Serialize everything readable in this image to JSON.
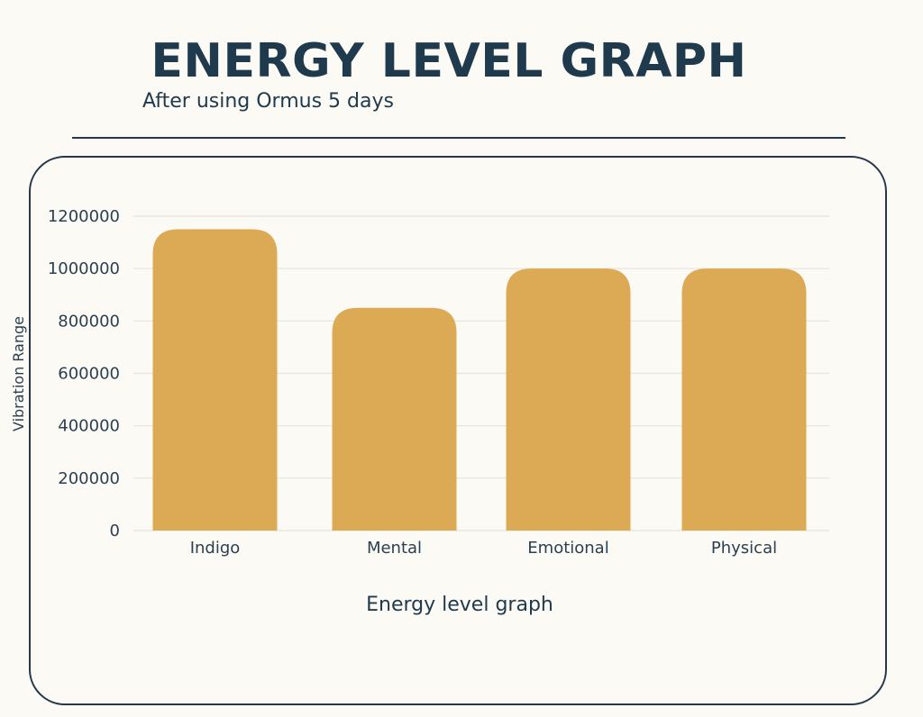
{
  "header": {
    "title": "ENERGY LEVEL GRAPH",
    "subtitle": "After using Ormus 5 days"
  },
  "colors": {
    "title": "#1f3a4d",
    "text": "#2b3f50",
    "bar": "#dca955",
    "grid": "#e6e4dc",
    "frame": "#26384a",
    "background": "#fbfaf4"
  },
  "chart_data": {
    "type": "bar",
    "categories": [
      "Indigo",
      "Mental",
      "Emotional",
      "Physical"
    ],
    "values": [
      1150000,
      850000,
      1000000,
      1000000
    ],
    "xlabel": "Energy level graph",
    "ylabel": "Vibration Range",
    "ylim": [
      0,
      1200000
    ],
    "yticks": [
      "0",
      "200000",
      "400000",
      "600000",
      "800000",
      "1000000",
      "1200000"
    ],
    "grid": true,
    "legend": "none"
  }
}
